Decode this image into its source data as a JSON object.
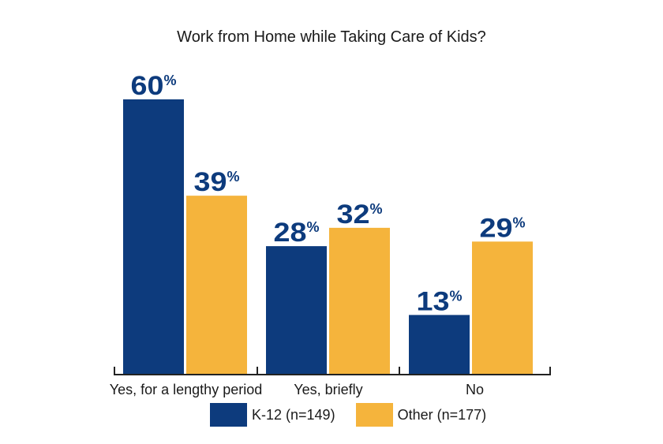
{
  "chart_data": {
    "type": "bar",
    "title": "Work from Home while Taking Care of Kids?",
    "categories": [
      "Yes, for a lengthy period",
      "Yes, briefly",
      "No"
    ],
    "series": [
      {
        "name": "K-12 (n=149)",
        "values": [
          60,
          28,
          13
        ],
        "color": "#0d3b7d"
      },
      {
        "name": "Other (n=177)",
        "values": [
          39,
          32,
          29
        ],
        "color": "#f5b43c"
      }
    ],
    "value_suffix": "%",
    "ylim": [
      0,
      60
    ],
    "grid": false,
    "legend_position": "bottom",
    "label_color": "#0d3b7d"
  }
}
